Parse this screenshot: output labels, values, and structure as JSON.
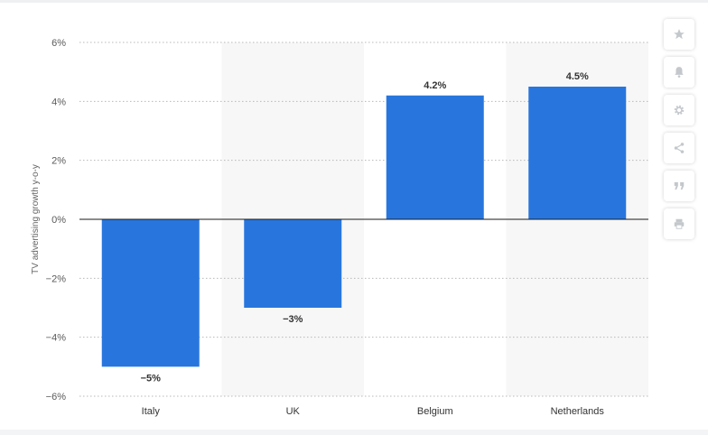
{
  "chart_data": {
    "type": "bar",
    "categories": [
      "Italy",
      "UK",
      "Belgium",
      "Netherlands"
    ],
    "values": [
      -5,
      -3,
      4.2,
      4.5
    ],
    "data_labels": [
      "−5%",
      "−3%",
      "4.2%",
      "4.5%"
    ],
    "title": "",
    "xlabel": "",
    "ylabel": "TV advertising growth y-o-y",
    "ylim": [
      -6,
      6
    ],
    "yticks": [
      6,
      4,
      2,
      0,
      -2,
      -4,
      -6
    ],
    "ytick_labels": [
      "6%",
      "4%",
      "2%",
      "0%",
      "−2%",
      "−4%",
      "−6%"
    ],
    "grid": true,
    "bar_color": "#2876dd"
  },
  "toolbar": {
    "items": [
      {
        "icon": "star-icon"
      },
      {
        "icon": "bell-icon"
      },
      {
        "icon": "gear-icon"
      },
      {
        "icon": "share-icon"
      },
      {
        "icon": "quote-icon"
      },
      {
        "icon": "print-icon"
      }
    ]
  }
}
